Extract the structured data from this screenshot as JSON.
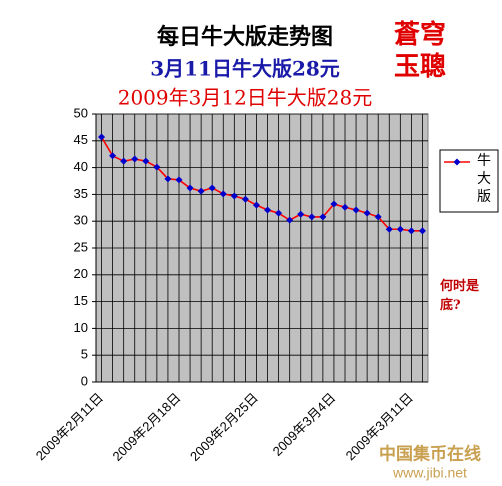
{
  "chart_data": {
    "type": "line",
    "title": "每日牛大版走势图",
    "subtitles": [
      "3月11日牛大版28元",
      "2009年3月12日牛大版28元"
    ],
    "subtitle_colors": [
      "#1a1aa8",
      "#e00000"
    ],
    "corner_marks": [
      "蒼穹",
      "玉聰"
    ],
    "annotation": "何时是底?",
    "watermark": [
      "中国集币在线",
      "www.jibi.net"
    ],
    "categories": [
      "2009年2月11日",
      null,
      null,
      null,
      null,
      null,
      null,
      "2009年2月18日",
      null,
      null,
      null,
      null,
      null,
      null,
      "2009年2月25日",
      null,
      null,
      null,
      null,
      null,
      null,
      "2009年3月4日",
      null,
      null,
      null,
      null,
      null,
      null,
      "2009年3月11日",
      null
    ],
    "series": [
      {
        "name": "牛大版",
        "color": "#ff0000",
        "marker_color": "#0000cc",
        "values": [
          45.7,
          42.2,
          41.2,
          41.6,
          41.2,
          40.1,
          37.9,
          37.7,
          36.2,
          35.6,
          36.2,
          35.1,
          34.7,
          34.1,
          33.0,
          32.1,
          31.5,
          30.2,
          31.3,
          30.8,
          30.8,
          33.2,
          32.6,
          32.1,
          31.5,
          30.8,
          28.5,
          28.5,
          28.2,
          28.2
        ]
      }
    ],
    "ylim": [
      0,
      50
    ],
    "yticks": [
      0,
      5,
      10,
      15,
      20,
      25,
      30,
      35,
      40,
      45,
      50
    ],
    "grid": true,
    "plot_background": "#c0c0c0",
    "legend": "right"
  }
}
